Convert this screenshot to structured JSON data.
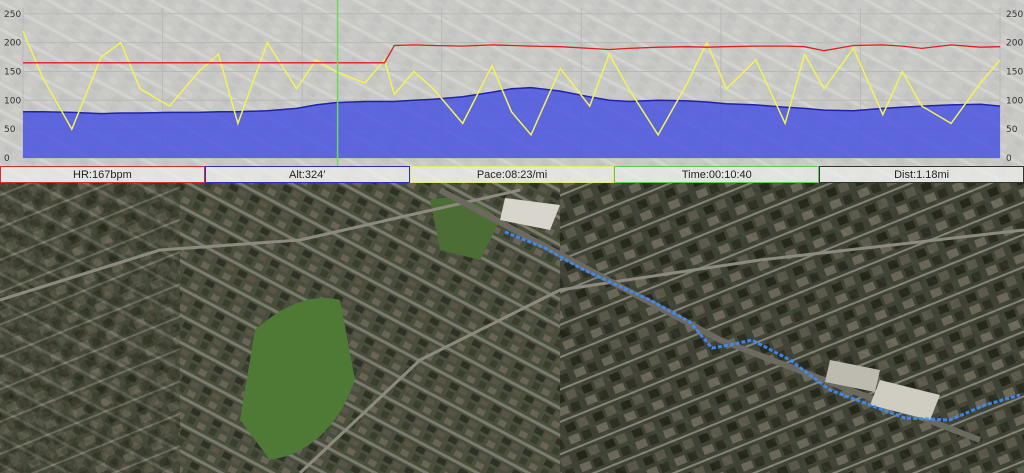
{
  "stats": [
    {
      "label": "HR:167bpm",
      "color": "#d0302a"
    },
    {
      "label": "Alt:324′",
      "color": "#2a33b8"
    },
    {
      "label": "Pace:08:23/mi",
      "color": "#e8e870"
    },
    {
      "label": "Time:00:10:40",
      "color": "#5fc85f"
    },
    {
      "label": "Dist:1.18mi",
      "color": "#2a3a28"
    }
  ],
  "colors": {
    "heart_rate": "#e02020",
    "altitude_fill": "#4a55e0",
    "altitude_line": "#2222aa",
    "pace": "#f4f25a",
    "cursor": "#66dd55",
    "route": "#3d8cff"
  },
  "chart_data": {
    "type": "line",
    "ylim": [
      0,
      260
    ],
    "y_ticks": [
      "0",
      "50",
      "100",
      "150",
      "200",
      "250"
    ],
    "grid": true,
    "cursor_position_fraction": 0.322,
    "x_fraction": [
      0,
      0.02,
      0.05,
      0.08,
      0.1,
      0.12,
      0.15,
      0.18,
      0.2,
      0.22,
      0.25,
      0.28,
      0.3,
      0.32,
      0.35,
      0.37,
      0.38,
      0.4,
      0.42,
      0.45,
      0.48,
      0.5,
      0.52,
      0.55,
      0.58,
      0.6,
      0.62,
      0.65,
      0.68,
      0.7,
      0.72,
      0.75,
      0.78,
      0.8,
      0.82,
      0.85,
      0.88,
      0.9,
      0.92,
      0.95,
      0.98,
      1.0
    ],
    "series": [
      {
        "values": [
          165,
          165,
          165,
          165,
          165,
          165,
          165,
          165,
          165,
          165,
          165,
          165,
          165,
          165,
          165,
          165,
          195,
          196,
          195,
          194,
          196,
          195,
          194,
          193,
          190,
          188,
          190,
          192,
          193,
          192,
          193,
          194,
          194,
          193,
          186,
          195,
          196,
          194,
          190,
          196,
          192,
          193
        ]
      },
      {
        "values": [
          80,
          80,
          79,
          77,
          78,
          78,
          79,
          79,
          80,
          80,
          82,
          86,
          92,
          96,
          98,
          98,
          98,
          100,
          102,
          106,
          114,
          120,
          122,
          116,
          106,
          100,
          98,
          100,
          99,
          97,
          94,
          92,
          88,
          86,
          83,
          82,
          86,
          88,
          90,
          92,
          93,
          90
        ]
      },
      {
        "values": [
          220,
          140,
          50,
          175,
          200,
          120,
          90,
          150,
          180,
          60,
          200,
          120,
          170,
          150,
          130,
          170,
          110,
          150,
          120,
          60,
          160,
          80,
          40,
          155,
          90,
          180,
          120,
          40,
          130,
          200,
          120,
          170,
          60,
          180,
          120,
          190,
          75,
          150,
          90,
          60,
          130,
          170
        ]
      }
    ]
  }
}
